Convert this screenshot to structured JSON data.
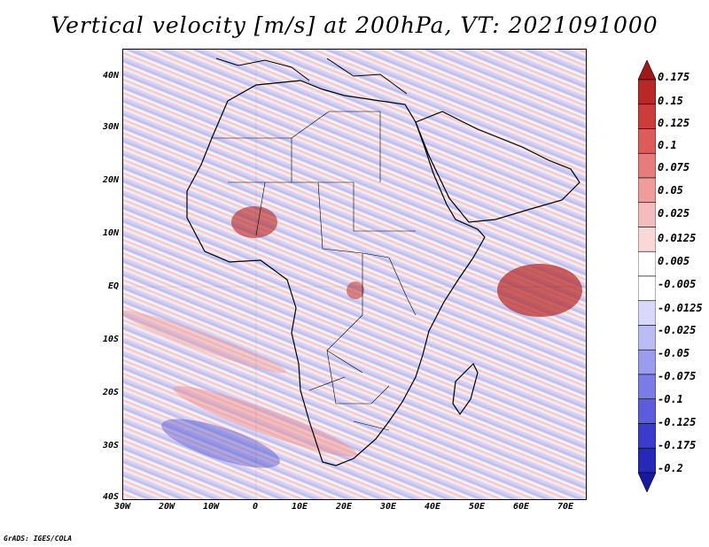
{
  "title": "Vertical velocity [m/s] at 200hPa, VT: 2021091000",
  "credit": "GrADS: IGES/COLA",
  "lat_labels": [
    "40N",
    "30N",
    "20N",
    "10N",
    "EQ",
    "10S",
    "20S",
    "30S",
    "40S"
  ],
  "lon_labels": [
    "30W",
    "20W",
    "10W",
    "0",
    "10E",
    "20E",
    "30E",
    "40E",
    "50E",
    "60E",
    "70E"
  ],
  "colorbar": {
    "levels": [
      "0.175",
      "0.15",
      "0.125",
      "0.1",
      "0.075",
      "0.05",
      "0.025",
      "0.0125",
      "0.005",
      "-0.005",
      "-0.0125",
      "-0.025",
      "-0.05",
      "-0.075",
      "-0.1",
      "-0.125",
      "-0.175",
      "-0.2"
    ],
    "colors": [
      "#a01818",
      "#b82828",
      "#cc3c3c",
      "#dc5c5c",
      "#e67c7c",
      "#ee9c9c",
      "#f4bcbc",
      "#fad8d8",
      "#ffffff",
      "#ffffff",
      "#d8d8fa",
      "#bcbcf4",
      "#9c9cee",
      "#7c7ce6",
      "#5c5cdc",
      "#3c3ccc",
      "#2828b8",
      "#1818a0"
    ]
  }
}
